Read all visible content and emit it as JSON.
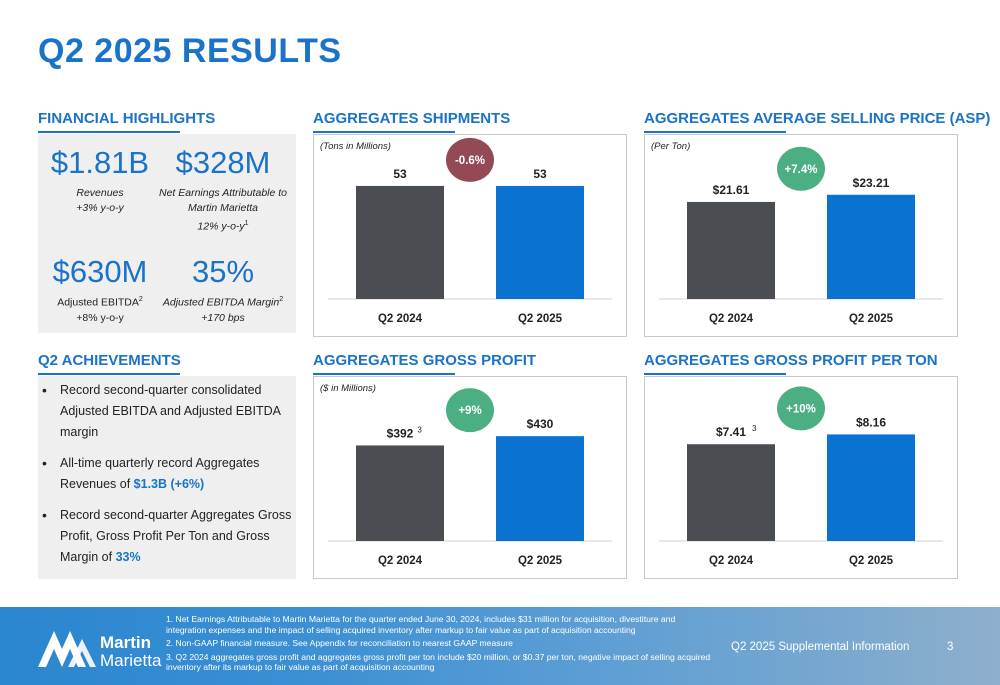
{
  "page_title": "Q2 2025 RESULTS",
  "financial_highlights": {
    "heading": "FINANCIAL HIGHLIGHTS",
    "metrics": [
      {
        "value": "$1.81B",
        "label": "Revenues",
        "sub": "+3% y-o-y",
        "sup": ""
      },
      {
        "value": "$328M",
        "label": "Net Earnings Attributable to Martin Marietta",
        "sub": "12% y-o-y",
        "sup": "1"
      },
      {
        "value": "$630M",
        "label": "Adjusted EBITDA",
        "label_sup": "2",
        "sub": "+8% y-o-y"
      },
      {
        "value": "35%",
        "label": "Adjusted EBITDA Margin",
        "label_sup": "2",
        "sub": "+170 bps"
      }
    ]
  },
  "achievements": {
    "heading": "Q2 ACHIEVEMENTS",
    "items": [
      {
        "text": "Record second-quarter consolidated Adjusted EBITDA and Adjusted EBITDA margin",
        "highlight": ""
      },
      {
        "text": "All-time quarterly record Aggregates Revenues of ",
        "highlight": "$1.3B (+6%)"
      },
      {
        "text": "Record second-quarter Aggregates Gross Profit, Gross Profit Per Ton and Gross Margin of ",
        "highlight": "33%"
      }
    ]
  },
  "colors": {
    "bar_prior": "#4a4d52",
    "bar_current": "#0a73d2",
    "badge_negative": "#944a56",
    "badge_positive": "#4caf84",
    "accent": "#1a73c8"
  },
  "chart_data": [
    {
      "type": "bar",
      "title": "AGGREGATES SHIPMENTS",
      "unit_note": "(Tons in Millions)",
      "categories": [
        "Q2 2024",
        "Q2 2025"
      ],
      "values": [
        53,
        53
      ],
      "labels": [
        "53",
        "53"
      ],
      "label_sup": [
        "",
        ""
      ],
      "change": "-0.6%",
      "change_sign": "negative",
      "ylim": [
        0,
        60
      ]
    },
    {
      "type": "bar",
      "title": "AGGREGATES AVERAGE SELLING PRICE (ASP)",
      "unit_note": "(Per Ton)",
      "categories": [
        "Q2 2024",
        "Q2 2025"
      ],
      "values": [
        21.61,
        23.21
      ],
      "labels": [
        "$21.61",
        "$23.21"
      ],
      "label_sup": [
        "",
        ""
      ],
      "change": "+7.4%",
      "change_sign": "positive",
      "ylim": [
        0,
        28.5
      ]
    },
    {
      "type": "bar",
      "title": "AGGREGATES GROSS PROFIT",
      "unit_note": "($ in Millions)",
      "categories": [
        "Q2 2024",
        "Q2 2025"
      ],
      "values": [
        392,
        430
      ],
      "labels": [
        "$392",
        "$430"
      ],
      "label_sup": [
        "3",
        ""
      ],
      "change": "+9%",
      "change_sign": "positive",
      "ylim": [
        0,
        525
      ]
    },
    {
      "type": "bar",
      "title": "AGGREGATES GROSS PROFIT PER TON",
      "unit_note": "",
      "categories": [
        "Q2 2024",
        "Q2 2025"
      ],
      "values": [
        7.41,
        8.16
      ],
      "labels": [
        "$7.41",
        "$8.16"
      ],
      "label_sup": [
        "3",
        ""
      ],
      "change": "+10%",
      "change_sign": "positive",
      "ylim": [
        0,
        9.8
      ]
    }
  ],
  "footer": {
    "logo_line1": "Martin",
    "logo_line2": "Marietta",
    "footnotes": [
      "1. Net Earnings Attributable to Martin Marietta for the quarter ended June 30, 2024, includes $31 million for acquisition, divestiture and integration expenses and the impact of selling acquired inventory after markup to fair value as part of acquisition accounting",
      "2. Non-GAAP financial measure. See Appendix for reconciliation to nearest GAAP measure",
      "3. Q2 2024 aggregates gross profit and aggregates gross profit per ton include $20 million, or $0.37 per ton, negative impact of selling acquired inventory after its markup to fair value as part of acquisition accounting"
    ],
    "supplemental": "Q2 2025 Supplemental Information",
    "page_number": "3"
  }
}
